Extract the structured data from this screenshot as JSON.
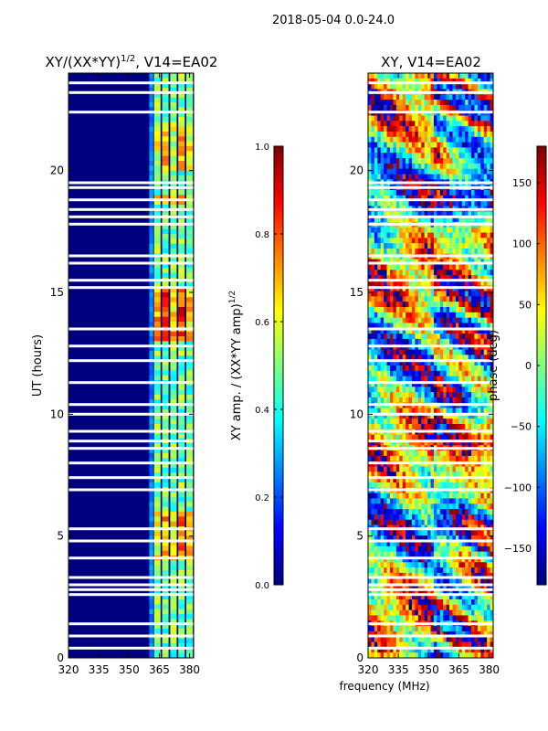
{
  "figure": {
    "suptitle": "2018-05-04 0.0-24.0",
    "shared_xlabel": "frequency (MHz)"
  },
  "colormap": [
    "#00007f",
    "#0000ff",
    "#007fff",
    "#00ffff",
    "#7fff7f",
    "#ffff00",
    "#ff7f00",
    "#ff0000",
    "#7f0000"
  ],
  "chart_data": [
    {
      "type": "heatmap",
      "title": "XY/(XX*YY)",
      "title_sup": "1/2",
      "title_suffix": ", V14=EA02",
      "xlabel": "",
      "ylabel": "UT (hours)",
      "xlim": [
        320,
        382
      ],
      "ylim": [
        0,
        24
      ],
      "xticks": [
        320,
        335,
        350,
        365,
        380
      ],
      "yticks": [
        0,
        5,
        10,
        15,
        20
      ],
      "colorbar": {
        "label": "XY amp. / (XX*YY amp)",
        "label_sup": "1/2",
        "range": [
          0.0,
          1.0
        ],
        "ticks": [
          "0.0",
          "0.2",
          "0.4",
          "0.6",
          "0.8",
          "1.0"
        ]
      },
      "gap_hours": [
        0.4,
        0.9,
        1.4,
        2.6,
        2.8,
        3.0,
        3.3,
        4.1,
        4.8,
        5.3,
        6.9,
        7.4,
        8.0,
        8.6,
        8.9,
        9.3,
        10.0,
        10.4,
        11.3,
        12.2,
        12.8,
        13.5,
        15.2,
        15.5,
        16.2,
        16.5,
        17.8,
        18.1,
        18.4,
        18.8,
        19.3,
        19.5,
        22.4,
        23.2,
        23.6
      ],
      "bright_channel_centers_mhz": [
        364,
        368,
        372,
        376,
        380
      ]
    },
    {
      "type": "heatmap",
      "title": "XY, V14=EA02",
      "xlabel": "frequency (MHz)",
      "ylabel": "",
      "xlim": [
        320,
        382
      ],
      "ylim": [
        0,
        24
      ],
      "xticks": [
        320,
        335,
        350,
        365,
        380
      ],
      "yticks": [
        0,
        5,
        10,
        15,
        20
      ],
      "colorbar": {
        "label": "phase (deg)",
        "range": [
          -180,
          180
        ],
        "ticks": [
          "150",
          "100",
          "50",
          "0",
          "−50",
          "−100",
          "−150"
        ],
        "tick_values": [
          150,
          100,
          50,
          0,
          -50,
          -100,
          -150
        ]
      },
      "gap_hours": [
        0.4,
        0.9,
        1.4,
        2.6,
        2.8,
        3.0,
        3.3,
        4.1,
        4.8,
        5.3,
        6.9,
        7.4,
        8.0,
        8.6,
        8.9,
        9.3,
        10.0,
        10.4,
        11.3,
        12.2,
        12.8,
        13.5,
        15.2,
        15.5,
        16.2,
        16.5,
        17.8,
        18.1,
        18.4,
        18.8,
        19.3,
        19.5,
        22.4,
        23.2,
        23.6
      ]
    }
  ]
}
